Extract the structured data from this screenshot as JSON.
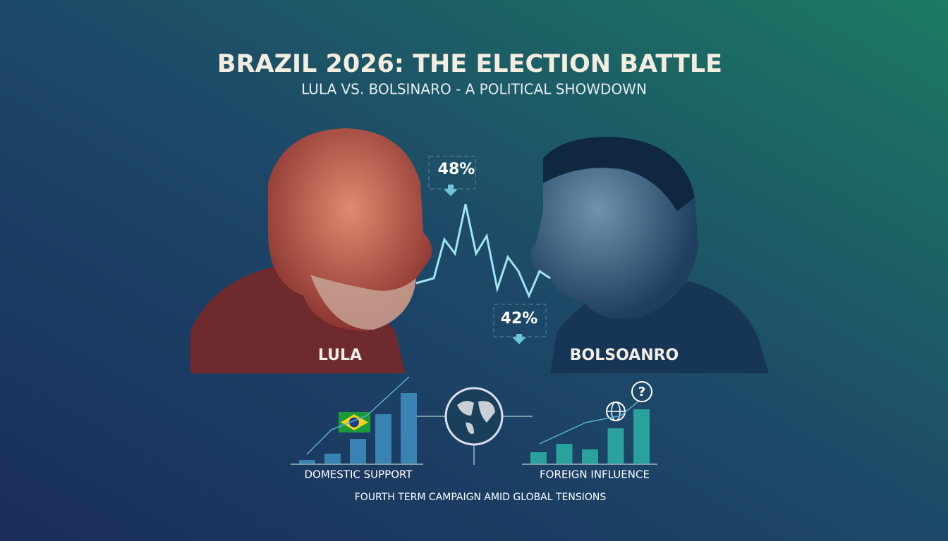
{
  "title": "BRAZIL 2026: THE ELECTION BATTLE",
  "subtitle": "LULA VS. BOLSINARO - A POLITICAL SHOWDOWN",
  "candidates": [
    {
      "name": "LULA",
      "share": {
        "value": 48,
        "label": "48%"
      }
    },
    {
      "name": "BOLSOANRO",
      "share": {
        "value": 42,
        "label": "42%"
      }
    }
  ],
  "panels": [
    {
      "label": "DOMESTIC SUPPORT",
      "values": [
        5,
        14,
        35,
        70,
        100
      ]
    },
    {
      "label": "FOREIGN INFLUENCE",
      "values": [
        16,
        28,
        20,
        50,
        77
      ]
    }
  ],
  "footer": "FOURTH TERM CAMPAIGN AMID GLOBAL TENSIONS"
}
